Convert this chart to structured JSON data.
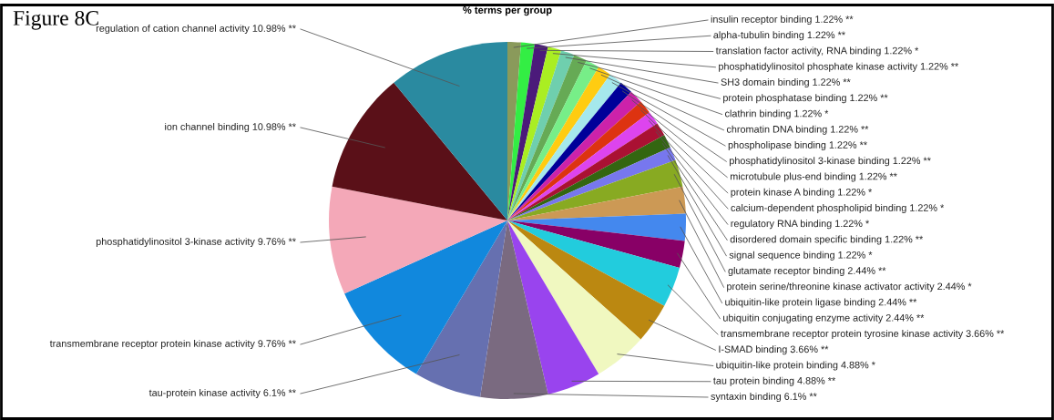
{
  "chart_data": {
    "type": "pie",
    "title": "% terms per group",
    "annotations": [
      "Figure 8C"
    ],
    "data_labels": true,
    "categories": [
      "insulin receptor binding",
      "alpha-tubulin binding",
      "translation factor activity, RNA binding",
      "phosphatidylinositol phosphate kinase activity",
      "SH3 domain binding",
      "protein phosphatase binding",
      "clathrin binding",
      "chromatin DNA binding",
      "phospholipase binding",
      "phosphatidylinositol 3-kinase binding",
      "microtubule plus-end binding",
      "protein kinase A binding",
      "calcium-dependent phospholipid binding",
      "regulatory RNA binding",
      "disordered domain specific binding",
      "signal sequence binding",
      "glutamate receptor binding",
      "protein serine/threonine kinase activator activity",
      "ubiquitin-like protein ligase binding",
      "ubiquitin conjugating enzyme activity",
      "transmembrane receptor protein tyrosine kinase activity",
      "I-SMAD binding",
      "ubiquitin-like protein binding",
      "tau protein binding",
      "syntaxin binding",
      "tau-protein kinase activity",
      "transmembrane receptor protein kinase activity",
      "phosphatidylinositol 3-kinase activity",
      "ion channel binding",
      "regulation of cation channel activity"
    ],
    "values": [
      1.22,
      1.22,
      1.22,
      1.22,
      1.22,
      1.22,
      1.22,
      1.22,
      1.22,
      1.22,
      1.22,
      1.22,
      1.22,
      1.22,
      1.22,
      1.22,
      2.44,
      2.44,
      2.44,
      2.44,
      3.66,
      3.66,
      4.88,
      4.88,
      6.1,
      6.1,
      9.76,
      9.76,
      10.98,
      10.98
    ],
    "value_labels": [
      "1.22% **",
      "1.22% **",
      "1.22% *",
      "1.22% **",
      "1.22% **",
      "1.22% **",
      "1.22% *",
      "1.22% **",
      "1.22% **",
      "1.22% **",
      "1.22% **",
      "1.22% *",
      "1.22% *",
      "1.22% *",
      "1.22% **",
      "1.22% *",
      "2.44% **",
      "2.44% *",
      "2.44% **",
      "2.44% **",
      "3.66% **",
      "3.66% **",
      "4.88% *",
      "4.88% **",
      "6.1% **",
      "6.1% **",
      "9.76% **",
      "9.76% **",
      "10.98% **",
      "10.98% **"
    ],
    "colors": [
      "#8a9a5b",
      "#33ee44",
      "#4b1a7a",
      "#aaee22",
      "#6fcfae",
      "#66aa55",
      "#77ee88",
      "#ffcc11",
      "#a5e8ec",
      "#000099",
      "#cc22aa",
      "#dd3311",
      "#dd44ee",
      "#aa1133",
      "#336611",
      "#7777ee",
      "#88aa22",
      "#cc9955",
      "#4488ee",
      "#880066",
      "#22ccdd",
      "#bb8811",
      "#f0f8c0",
      "#9944ee",
      "#7a6a80",
      "#6670b0",
      "#1188dd",
      "#f4a8b8",
      "#5a1018",
      "#2a8aa0"
    ]
  }
}
